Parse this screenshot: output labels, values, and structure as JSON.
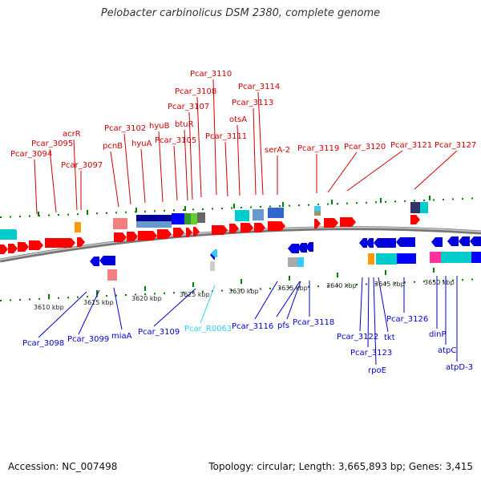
{
  "title": "Pelobacter carbinolicus DSM 2380, complete genome",
  "footer": {
    "accession": "Accession: NC_007498",
    "topology": "Topology: circular; Length: 3,665,893 bp; Genes: 3,415"
  },
  "colors": {
    "forward": "#ff0000",
    "reverse": "#0000dd",
    "rna": "#33ccff",
    "cyan": "#00cccc",
    "tick": "#008000",
    "backbone": "#777777"
  },
  "scale": {
    "ticks": [
      "3610 kbp",
      "3615 kbp",
      "3620 kbp",
      "3625 kbp",
      "3630 kbp",
      "3635 kbp",
      "3640 kbp",
      "3645 kbp",
      "3650 kbp"
    ]
  },
  "top_labels": [
    "Pcar_3094",
    "Pcar_3095",
    "acrR",
    "Pcar_3097",
    "pcnB",
    "Pcar_3102",
    "hyuA",
    "hyuB",
    "Pcar_3105",
    "btuR",
    "Pcar_3107",
    "Pcar_3108",
    "Pcar_3110",
    "Pcar_3111",
    "otsA",
    "Pcar_3113",
    "Pcar_3114",
    "serA-2",
    "Pcar_3119",
    "Pcar_3120",
    "Pcar_3121",
    "Pcar_3127"
  ],
  "bottom_labels": [
    "Pcar_3098",
    "Pcar_3099",
    "miaA",
    "Pcar_3109",
    "Pcar_R0063",
    "Pcar_3116",
    "pfs",
    "Pcar_3118",
    "Pcar_3122",
    "Pcar_3123",
    "rpoE",
    "tkt",
    "Pcar_3126",
    "dinP",
    "atpC",
    "atpD-3"
  ]
}
